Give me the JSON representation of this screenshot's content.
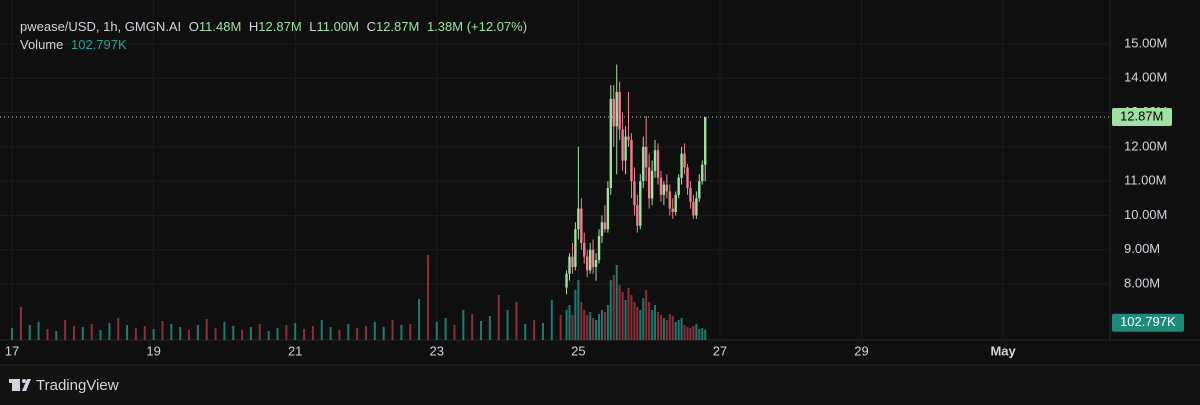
{
  "chart_data": {
    "type": "candlestick",
    "header": {
      "symbol": "pwease/USD, 1h, GMGN.AI",
      "o_label": "O",
      "o": "11.48M",
      "h_label": "H",
      "h": "12.87M",
      "l_label": "L",
      "l": "11.00M",
      "c_label": "C",
      "c": "12.87M",
      "change": "1.38M (+12.07%)"
    },
    "x": [
      24.833,
      24.875,
      24.917,
      24.958,
      25.0,
      25.042,
      25.083,
      25.125,
      25.167,
      25.208,
      25.25,
      25.292,
      25.333,
      25.375,
      25.417,
      25.458,
      25.5,
      25.542,
      25.583,
      25.625,
      25.667,
      25.708,
      25.75,
      25.792,
      25.833,
      25.875,
      25.917,
      25.958,
      26.0,
      26.042,
      26.083,
      26.125,
      26.167,
      26.208,
      26.25,
      26.292,
      26.333,
      26.375,
      26.417,
      26.458,
      26.5,
      26.542,
      26.583,
      26.625,
      26.667,
      26.708,
      26.75,
      26.792
    ],
    "open": [
      7.9,
      8.3,
      8.8,
      8.5,
      9.6,
      10.2,
      9.2,
      8.8,
      8.4,
      9.0,
      8.5,
      8.7,
      9.4,
      9.8,
      9.6,
      10.8,
      13.4,
      12.6,
      13.6,
      12.5,
      11.6,
      12.3,
      12.2,
      11.0,
      10.3,
      9.7,
      11.0,
      12.0,
      11.4,
      10.5,
      11.3,
      11.9,
      11.1,
      10.6,
      10.9,
      10.7,
      10.2,
      10.1,
      10.6,
      11.1,
      11.8,
      11.4,
      10.8,
      10.4,
      10.0,
      10.5,
      11.0,
      11.48
    ],
    "high": [
      8.4,
      8.9,
      9.2,
      9.8,
      12.0,
      10.5,
      9.5,
      9.0,
      9.2,
      9.3,
      8.9,
      9.6,
      10.0,
      10.3,
      11.0,
      13.8,
      13.8,
      14.4,
      13.9,
      13.0,
      12.6,
      13.6,
      12.4,
      11.4,
      10.6,
      11.2,
      12.3,
      12.9,
      11.8,
      11.6,
      12.2,
      12.1,
      11.3,
      11.0,
      11.2,
      10.9,
      10.5,
      10.7,
      11.2,
      12.0,
      12.1,
      11.5,
      11.0,
      10.6,
      10.7,
      11.2,
      11.6,
      12.87
    ],
    "low": [
      7.7,
      8.1,
      8.3,
      8.4,
      9.3,
      9.0,
      8.6,
      8.2,
      8.3,
      8.3,
      8.1,
      8.6,
      9.2,
      9.5,
      9.5,
      10.6,
      12.0,
      11.2,
      12.2,
      11.3,
      11.2,
      12.0,
      10.5,
      10.0,
      9.5,
      9.6,
      10.8,
      11.0,
      10.2,
      10.3,
      11.1,
      10.9,
      10.4,
      10.3,
      10.5,
      10.0,
      9.9,
      10.0,
      10.5,
      10.9,
      11.2,
      10.6,
      10.2,
      9.9,
      9.9,
      10.4,
      10.9,
      11.0
    ],
    "close": [
      8.3,
      8.8,
      8.5,
      9.6,
      10.2,
      9.2,
      8.8,
      8.4,
      9.0,
      8.5,
      8.7,
      9.4,
      9.8,
      9.6,
      10.8,
      13.4,
      12.6,
      13.6,
      12.5,
      11.6,
      12.3,
      12.2,
      11.0,
      10.3,
      9.7,
      11.0,
      12.0,
      11.4,
      10.5,
      11.3,
      11.9,
      11.1,
      10.6,
      10.9,
      10.7,
      10.2,
      10.1,
      10.6,
      11.1,
      11.8,
      11.4,
      10.8,
      10.4,
      10.0,
      10.5,
      11.0,
      11.48,
      12.87
    ],
    "volume": [
      300,
      350,
      250,
      500,
      600,
      380,
      300,
      250,
      280,
      220,
      200,
      260,
      300,
      280,
      350,
      600,
      650,
      750,
      550,
      480,
      400,
      520,
      450,
      380,
      330,
      300,
      420,
      500,
      380,
      300,
      350,
      280,
      250,
      220,
      200,
      260,
      240,
      180,
      200,
      220,
      150,
      130,
      120,
      140,
      160,
      110,
      120,
      102.797
    ],
    "up_color": "#9fe0a3",
    "down_color": "#f0808f",
    "xlim": [
      16.83,
      32.51
    ],
    "xticks": [
      17,
      19,
      21,
      23,
      25,
      27,
      29,
      {
        "value": 31,
        "label": "May"
      }
    ],
    "ylim": [
      6.37,
      16.28
    ],
    "yticks": [
      {
        "value": 8,
        "label": "8.00M"
      },
      {
        "value": 9,
        "label": "9.00M"
      },
      {
        "value": 10,
        "label": "10.00M"
      },
      {
        "value": 11,
        "label": "11.00M"
      },
      {
        "value": 12,
        "label": "12.00M"
      },
      {
        "value": 13,
        "label": "13.00M"
      },
      {
        "value": 14,
        "label": "14.00M"
      },
      {
        "value": 15,
        "label": "15.00M"
      }
    ],
    "grid": true,
    "last_price": {
      "value": 12.87,
      "label": "12.87M"
    },
    "volume_pane": {
      "label": "Volume",
      "ylim": [
        0,
        3400
      ],
      "up_color": "#1f7a6f",
      "down_color": "#8a2f3a",
      "last": {
        "value": 102.797,
        "label": "102.797K"
      },
      "x": [
        17.0,
        17.125,
        17.25,
        17.375,
        17.5,
        17.625,
        17.75,
        17.875,
        18.0,
        18.125,
        18.25,
        18.375,
        18.5,
        18.625,
        18.75,
        18.875,
        19.0,
        19.125,
        19.25,
        19.375,
        19.5,
        19.625,
        19.75,
        19.875,
        20.0,
        20.125,
        20.25,
        20.375,
        20.5,
        20.625,
        20.75,
        20.875,
        21.0,
        21.125,
        21.25,
        21.375,
        21.5,
        21.625,
        21.75,
        21.875,
        22.0,
        22.125,
        22.25,
        22.375,
        22.5,
        22.625,
        22.75,
        22.875,
        23.0,
        23.125,
        23.25,
        23.375,
        23.5,
        23.625,
        23.75,
        23.875,
        24.0,
        24.125,
        24.25,
        24.375,
        24.5,
        24.625,
        24.75
      ],
      "values": [
        120,
        330,
        150,
        180,
        110,
        90,
        200,
        140,
        130,
        160,
        100,
        170,
        220,
        150,
        120,
        140,
        110,
        190,
        160,
        130,
        100,
        150,
        210,
        120,
        180,
        140,
        100,
        130,
        160,
        90,
        120,
        150,
        170,
        110,
        140,
        200,
        130,
        100,
        160,
        120,
        140,
        180,
        130,
        200,
        150,
        160,
        410,
        850,
        180,
        220,
        150,
        300,
        260,
        190,
        240,
        450,
        300,
        380,
        160,
        200,
        170,
        400,
        250
      ],
      "up": [
        1,
        0,
        1,
        1,
        0,
        1,
        0,
        0,
        1,
        0,
        1,
        1,
        0,
        1,
        0,
        0,
        1,
        0,
        1,
        1,
        0,
        1,
        0,
        0,
        1,
        1,
        0,
        1,
        0,
        1,
        1,
        0,
        1,
        0,
        0,
        1,
        1,
        0,
        1,
        0,
        0,
        1,
        1,
        0,
        1,
        0,
        1,
        0,
        1,
        1,
        0,
        1,
        0,
        1,
        1,
        0,
        1,
        0,
        1,
        0,
        1,
        1,
        0
      ]
    }
  },
  "footer": {
    "brand": "TradingView"
  }
}
